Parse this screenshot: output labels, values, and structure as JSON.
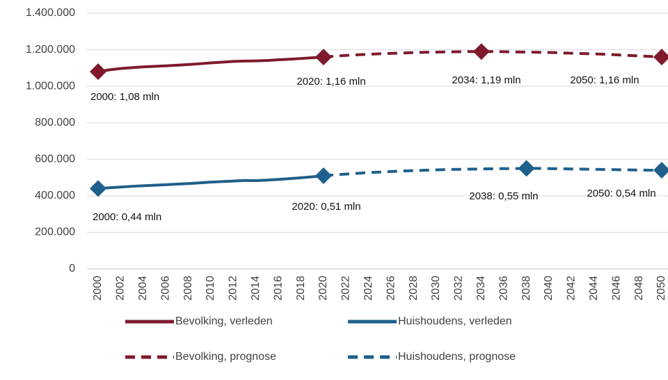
{
  "chart_data": {
    "type": "line",
    "x": [
      2000,
      2001,
      2002,
      2003,
      2004,
      2005,
      2006,
      2007,
      2008,
      2009,
      2010,
      2011,
      2012,
      2013,
      2014,
      2015,
      2016,
      2017,
      2018,
      2019,
      2020,
      2021,
      2022,
      2023,
      2024,
      2025,
      2026,
      2027,
      2028,
      2029,
      2030,
      2031,
      2032,
      2033,
      2034,
      2035,
      2036,
      2037,
      2038,
      2039,
      2040,
      2041,
      2042,
      2043,
      2044,
      2045,
      2046,
      2047,
      2048,
      2049,
      2050
    ],
    "xlim": [
      2000,
      2050
    ],
    "xticks": [
      2000,
      2002,
      2004,
      2006,
      2008,
      2010,
      2012,
      2014,
      2016,
      2018,
      2020,
      2022,
      2024,
      2026,
      2028,
      2030,
      2032,
      2034,
      2036,
      2038,
      2040,
      2042,
      2044,
      2046,
      2048,
      2050
    ],
    "ylim": [
      0,
      1400000
    ],
    "yticks": [
      0,
      {
        "value": 200000,
        "label": "200.000"
      },
      {
        "value": 400000,
        "label": "400.000"
      },
      {
        "value": 600000,
        "label": "600.000"
      },
      {
        "value": 800000,
        "label": "800.000"
      },
      {
        "value": 1000000,
        "label": "1.000.000"
      },
      {
        "value": 1200000,
        "label": "1.200.000"
      },
      {
        "value": 1400000,
        "label": "1.400.000"
      }
    ],
    "grid": true,
    "series": [
      {
        "name": "Bevolking, verleden",
        "color": "#7f1a2c",
        "line_style": "solid",
        "values": [
          1080000,
          1090000,
          1097000,
          1102000,
          1106000,
          1109000,
          1112000,
          1115000,
          1119000,
          1123000,
          1128000,
          1132000,
          1136000,
          1138000,
          1139000,
          1141000,
          1145000,
          1148000,
          1152000,
          1156000,
          1160000,
          null,
          null,
          null,
          null,
          null,
          null,
          null,
          null,
          null,
          null,
          null,
          null,
          null,
          null,
          null,
          null,
          null,
          null,
          null,
          null,
          null,
          null,
          null,
          null,
          null,
          null,
          null,
          null,
          null,
          null
        ]
      },
      {
        "name": "Huishoudens, verleden",
        "color": "#1f5f8b",
        "line_style": "solid",
        "values": [
          440000,
          444000,
          448000,
          452000,
          455000,
          458000,
          461000,
          464000,
          467000,
          471000,
          475000,
          478000,
          481000,
          484000,
          483000,
          486000,
          490000,
          494000,
          499000,
          504000,
          510000,
          null,
          null,
          null,
          null,
          null,
          null,
          null,
          null,
          null,
          null,
          null,
          null,
          null,
          null,
          null,
          null,
          null,
          null,
          null,
          null,
          null,
          null,
          null,
          null,
          null,
          null,
          null,
          null,
          null,
          null
        ]
      },
      {
        "name": "Bevolking, prognose",
        "color": "#7f1a2c",
        "line_style": "dashed",
        "values": [
          null,
          null,
          null,
          null,
          null,
          null,
          null,
          null,
          null,
          null,
          null,
          null,
          null,
          null,
          null,
          null,
          null,
          null,
          null,
          null,
          1160000,
          1165000,
          1169000,
          1172000,
          1175000,
          1178000,
          1180000,
          1182000,
          1184000,
          1186000,
          1187000,
          1188000,
          1189000,
          1190000,
          1190000,
          1190000,
          1189000,
          1188000,
          1187000,
          1186000,
          1185000,
          1183000,
          1181000,
          1179000,
          1177000,
          1175000,
          1172000,
          1169000,
          1166000,
          1163000,
          1160000
        ]
      },
      {
        "name": "Huishoudens, prognose",
        "color": "#1f5f8b",
        "line_style": "dashed",
        "values": [
          null,
          null,
          null,
          null,
          null,
          null,
          null,
          null,
          null,
          null,
          null,
          null,
          null,
          null,
          null,
          null,
          null,
          null,
          null,
          null,
          510000,
          515000,
          519000,
          523000,
          527000,
          530000,
          533000,
          536000,
          538000,
          540000,
          542000,
          544000,
          545000,
          546000,
          547000,
          548000,
          549000,
          549000,
          550000,
          550000,
          549000,
          548000,
          547000,
          546000,
          545000,
          544000,
          543000,
          542000,
          541000,
          540000,
          540000
        ]
      }
    ],
    "annotations": [
      {
        "text": "2000: 1,08 mln",
        "x": 2000,
        "y": 1080000,
        "color": "#7f1a2c"
      },
      {
        "text": "2020: 1,16 mln",
        "x": 2020,
        "y": 1160000,
        "color": "#7f1a2c"
      },
      {
        "text": "2034: 1,19 mln",
        "x": 2034,
        "y": 1190000,
        "color": "#7f1a2c"
      },
      {
        "text": "2050: 1,16 mln",
        "x": 2050,
        "y": 1160000,
        "color": "#7f1a2c"
      },
      {
        "text": "2000: 0,44 mln",
        "x": 2000,
        "y": 440000,
        "color": "#1f5f8b"
      },
      {
        "text": "2020: 0,51 mln",
        "x": 2020,
        "y": 510000,
        "color": "#1f5f8b"
      },
      {
        "text": "2038: 0,55 mln",
        "x": 2038,
        "y": 550000,
        "color": "#1f5f8b"
      },
      {
        "text": "2050: 0,54 mln",
        "x": 2050,
        "y": 540000,
        "color": "#1f5f8b"
      }
    ]
  }
}
